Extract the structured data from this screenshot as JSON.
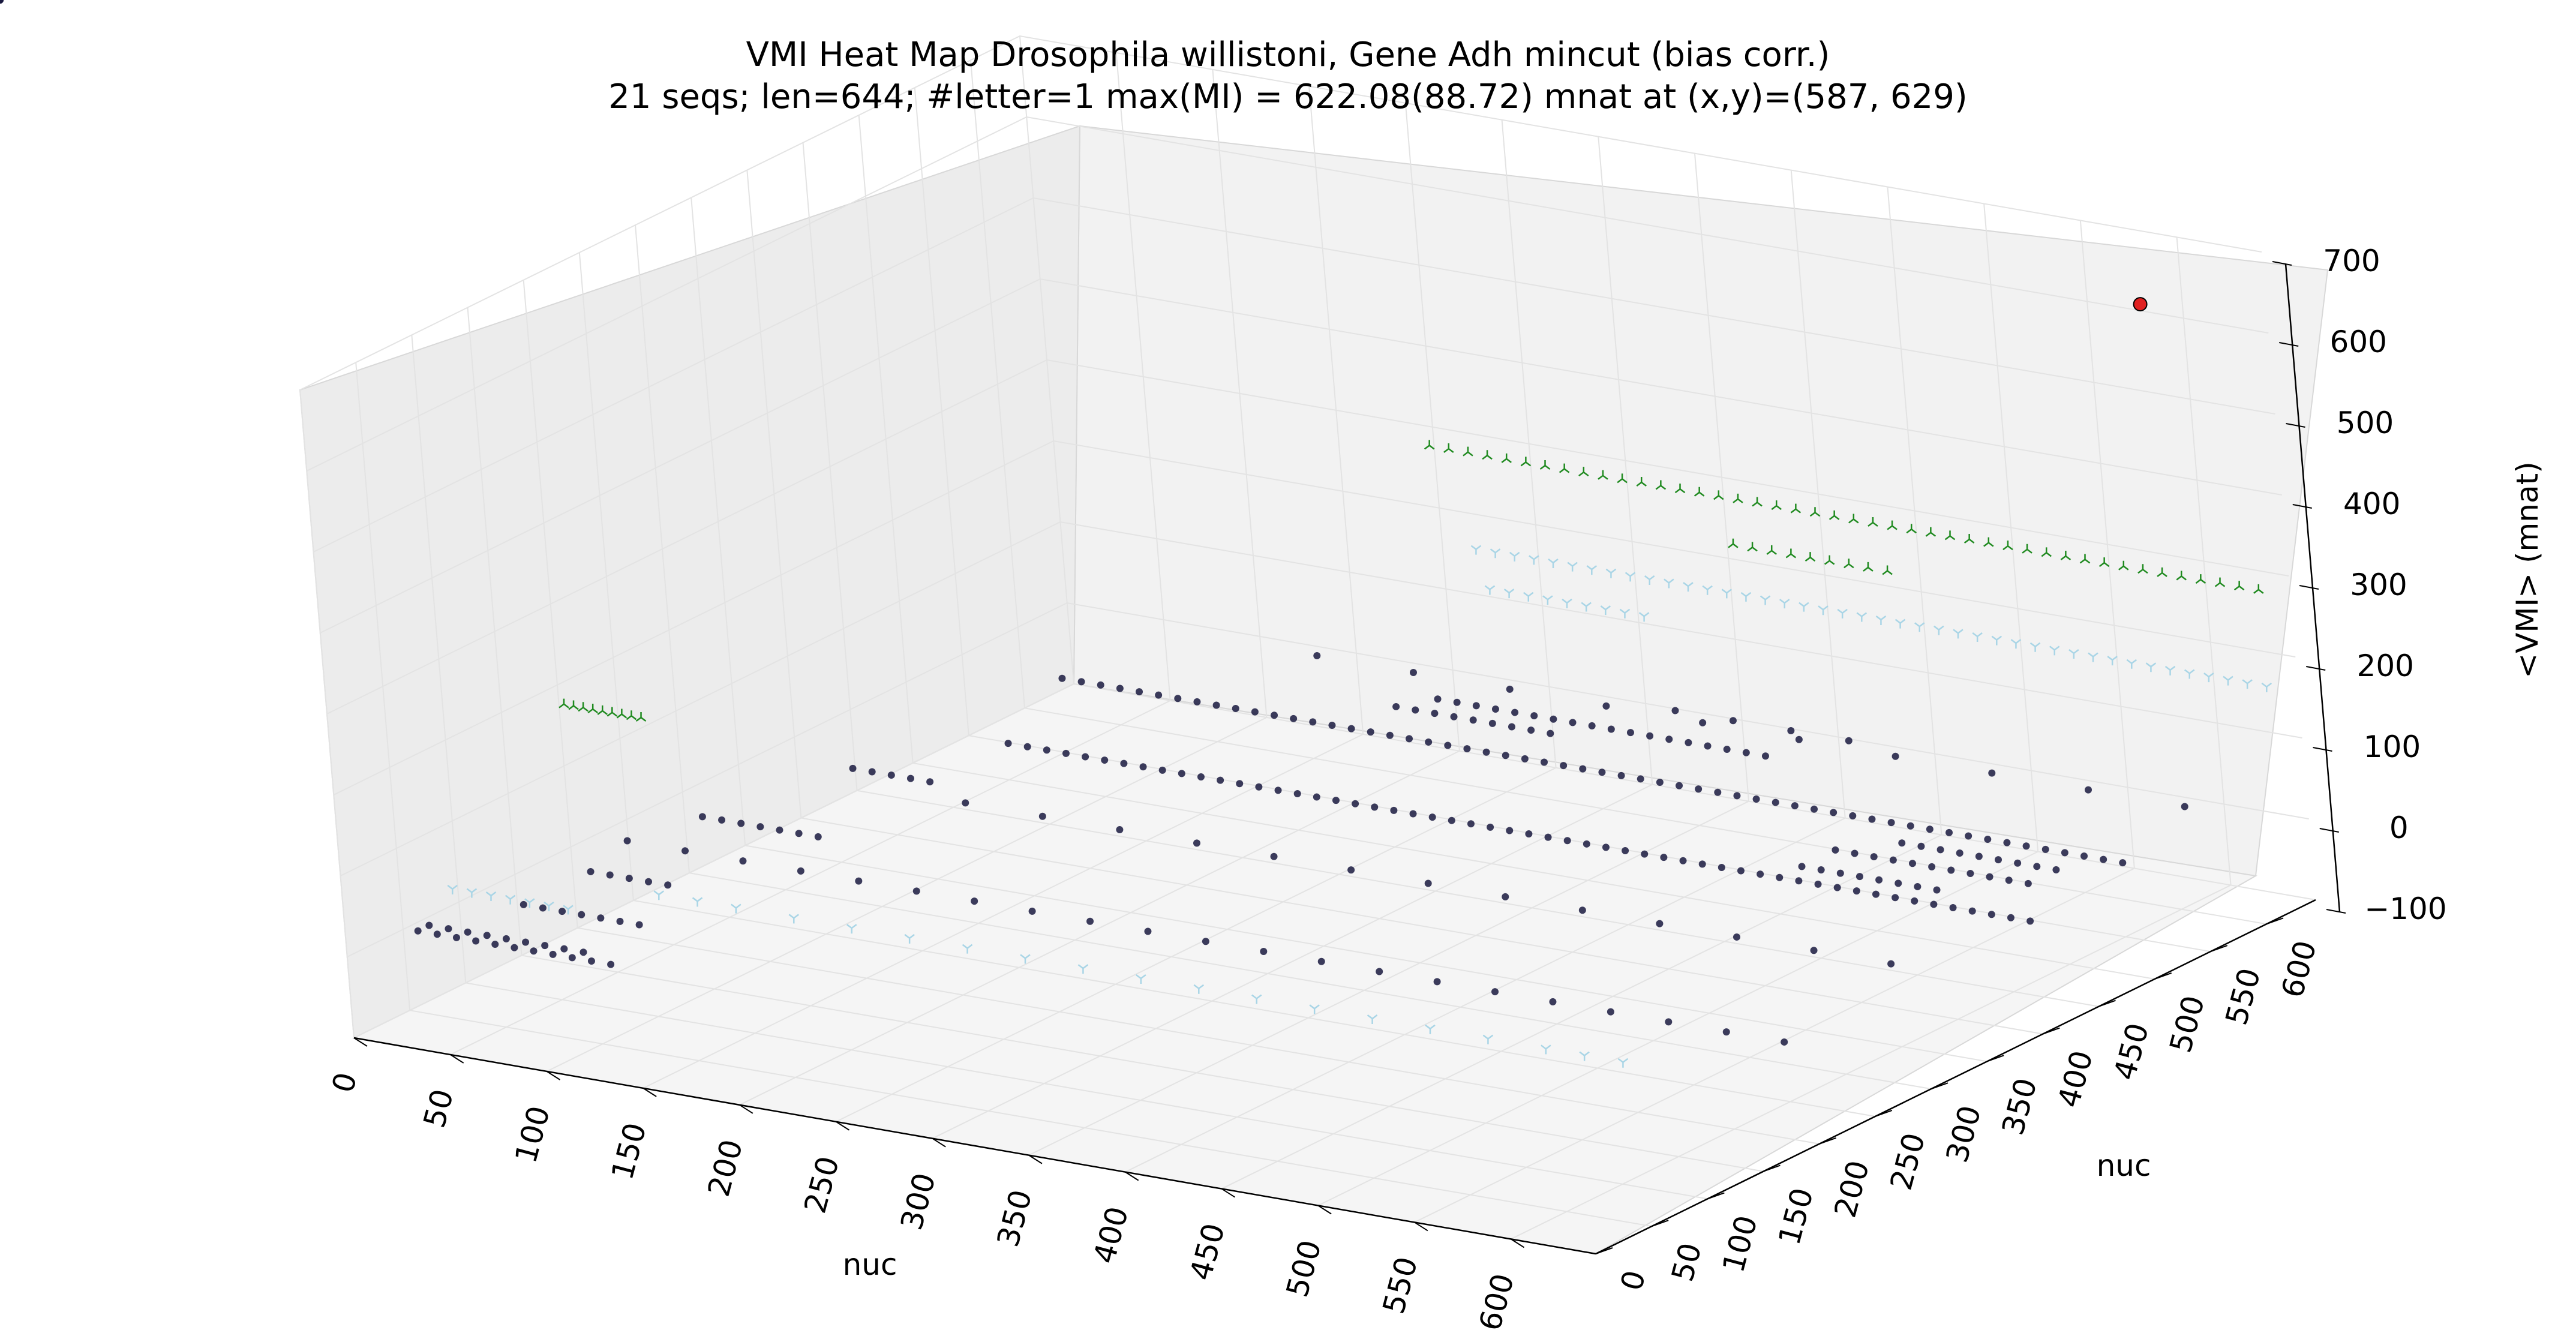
{
  "chart_data": {
    "type": "scatter",
    "projection": "3d",
    "title": "VMI Heat Map Drosophila willistoni, Gene Adh mincut (bias corr.)",
    "subtitle": "21 seqs; len=644; #letter=1 max(MI) = 622.08(88.72) mnat at (x,y)=(587, 629)",
    "xlabel": "nuc",
    "ylabel": "nuc",
    "zlabel": "<VMI> (mnat)",
    "xlim": [
      0,
      644
    ],
    "ylim": [
      0,
      644
    ],
    "zlim": [
      -100,
      700
    ],
    "x_ticks": [
      "0",
      "50",
      "100",
      "150",
      "200",
      "250",
      "300",
      "350",
      "400",
      "450",
      "500",
      "550",
      "600"
    ],
    "y_ticks": [
      "0",
      "50",
      "100",
      "150",
      "200",
      "250",
      "300",
      "350",
      "400",
      "450",
      "500",
      "550",
      "600"
    ],
    "z_ticks": [
      "−100",
      "0",
      "100",
      "200",
      "300",
      "400",
      "500",
      "600",
      "700"
    ],
    "grid": true,
    "colors": {
      "pane_back": "#f2f2f2",
      "pane_side": "#ececec",
      "pane_floor": "#f5f5f5",
      "grid": "#e3e3e3",
      "dots": "#1a1a40",
      "light": "#a9d5e6",
      "green": "#1f8a1f",
      "max_point": "#e02020"
    },
    "series": [
      {
        "marker": "dot",
        "color": "#1a1a40",
        "x": [
          20,
          30,
          40,
          50,
          60,
          70,
          80,
          90,
          100,
          110,
          120,
          20,
          30,
          40,
          50,
          60,
          70,
          80,
          90,
          100,
          40,
          50,
          60,
          70,
          80,
          90,
          100,
          40,
          50,
          60,
          70,
          80,
          40,
          50,
          60,
          70,
          80,
          90,
          100,
          60,
          70,
          80,
          90,
          100,
          100,
          110,
          120,
          130,
          140,
          150,
          160,
          170,
          180,
          190,
          200,
          210,
          220,
          230,
          240,
          250,
          260,
          270,
          280,
          290,
          300,
          310,
          320,
          330,
          340,
          350,
          360,
          370,
          380,
          390,
          400,
          410,
          420,
          430,
          440,
          450,
          460,
          470,
          480,
          490,
          500,
          510,
          520,
          530,
          540,
          550,
          560,
          570,
          580,
          590,
          600,
          610,
          620,
          630,
          70,
          80,
          90,
          100,
          110,
          120,
          130,
          140,
          150,
          160,
          170,
          180,
          190,
          200,
          210,
          220,
          230,
          240,
          250,
          260,
          270,
          280,
          290,
          300,
          310,
          320,
          330,
          340,
          350,
          360,
          370,
          380,
          390,
          400,
          410,
          420,
          430,
          440,
          450,
          460,
          470,
          480,
          490,
          500,
          510,
          520,
          530,
          540,
          550,
          560,
          570,
          580,
          590,
          600,
          610,
          620,
          220,
          230,
          240,
          250,
          260,
          270,
          280,
          290,
          300,
          230,
          240,
          250,
          260,
          270,
          280,
          290,
          300,
          310,
          320,
          330,
          340,
          350,
          360,
          370,
          380,
          390,
          400,
          500,
          510,
          520,
          530,
          540,
          550,
          560,
          570,
          500,
          510,
          520,
          530,
          540,
          550,
          560,
          570,
          580,
          590,
          600,
          520,
          530,
          540,
          550,
          560,
          570,
          580,
          590,
          600,
          30,
          60,
          90,
          120,
          150,
          180,
          210,
          240,
          270,
          300,
          330,
          360,
          390,
          420,
          450,
          480,
          510,
          540,
          570,
          600,
          630,
          130,
          170,
          210,
          250,
          290,
          330,
          370,
          410,
          450,
          490,
          530,
          570,
          610,
          150,
          200,
          250,
          300,
          350,
          400,
          450,
          500,
          550,
          600,
          330,
          360,
          390,
          420,
          450,
          480,
          510,
          540
        ],
        "y": [
          30,
          30,
          30,
          30,
          30,
          30,
          30,
          30,
          30,
          30,
          30,
          40,
          40,
          40,
          40,
          40,
          40,
          40,
          40,
          40,
          90,
          90,
          90,
          90,
          90,
          90,
          90,
          150,
          150,
          150,
          150,
          150,
          250,
          250,
          250,
          250,
          250,
          250,
          250,
          350,
          350,
          350,
          350,
          350,
          420,
          420,
          420,
          420,
          420,
          420,
          420,
          420,
          420,
          420,
          420,
          420,
          420,
          420,
          420,
          420,
          420,
          420,
          420,
          420,
          420,
          420,
          420,
          420,
          420,
          420,
          420,
          420,
          420,
          420,
          420,
          420,
          420,
          420,
          420,
          420,
          420,
          420,
          420,
          420,
          420,
          420,
          420,
          420,
          420,
          420,
          420,
          420,
          420,
          420,
          420,
          420,
          420,
          420,
          520,
          520,
          520,
          520,
          520,
          520,
          520,
          520,
          520,
          520,
          520,
          520,
          520,
          520,
          520,
          520,
          520,
          520,
          520,
          520,
          520,
          520,
          520,
          520,
          520,
          520,
          520,
          520,
          520,
          520,
          520,
          520,
          520,
          520,
          520,
          520,
          520,
          520,
          520,
          520,
          520,
          520,
          520,
          520,
          520,
          520,
          520,
          520,
          520,
          520,
          520,
          520,
          520,
          520,
          520,
          520,
          560,
          560,
          560,
          560,
          560,
          560,
          560,
          560,
          560,
          580,
          580,
          580,
          580,
          580,
          580,
          580,
          580,
          580,
          580,
          580,
          580,
          580,
          580,
          580,
          580,
          580,
          580,
          440,
          440,
          440,
          440,
          440,
          440,
          440,
          440,
          470,
          470,
          470,
          470,
          470,
          470,
          470,
          470,
          470,
          470,
          470,
          495,
          495,
          495,
          495,
          495,
          495,
          495,
          495,
          495,
          200,
          200,
          200,
          200,
          200,
          200,
          200,
          200,
          200,
          200,
          200,
          200,
          200,
          200,
          200,
          200,
          200,
          200,
          200,
          200,
          200,
          330,
          330,
          330,
          330,
          330,
          330,
          330,
          330,
          330,
          330,
          330,
          330,
          330,
          610,
          610,
          610,
          610,
          610,
          610,
          610,
          610,
          610,
          610,
          620,
          620,
          620,
          620,
          620,
          620,
          620,
          620
        ],
        "z": [
          20,
          20,
          20,
          20,
          20,
          20,
          20,
          20,
          20,
          20,
          20,
          20,
          20,
          20,
          20,
          20,
          20,
          20,
          20,
          20,
          20,
          20,
          20,
          20,
          20,
          20,
          20,
          20,
          20,
          20,
          20,
          20,
          20,
          20,
          20,
          20,
          20,
          20,
          20,
          20,
          20,
          20,
          20,
          20,
          20,
          20,
          20,
          20,
          20,
          20,
          20,
          20,
          20,
          20,
          20,
          20,
          20,
          20,
          20,
          20,
          20,
          20,
          20,
          20,
          20,
          20,
          20,
          20,
          20,
          20,
          20,
          20,
          20,
          20,
          20,
          20,
          20,
          20,
          20,
          20,
          20,
          20,
          20,
          20,
          20,
          20,
          20,
          20,
          20,
          20,
          20,
          20,
          20,
          20,
          20,
          20,
          20,
          20,
          20,
          20,
          20,
          20,
          20,
          20,
          20,
          20,
          20,
          20,
          20,
          20,
          20,
          20,
          20,
          20,
          20,
          20,
          20,
          20,
          20,
          20,
          20,
          20,
          20,
          20,
          20,
          20,
          20,
          20,
          20,
          20,
          20,
          20,
          20,
          20,
          20,
          20,
          20,
          20,
          20,
          20,
          20,
          20,
          20,
          20,
          20,
          20,
          20,
          20,
          20,
          20,
          20,
          20,
          20,
          20,
          20,
          20,
          20,
          20,
          20,
          20,
          20,
          20,
          20,
          20,
          20,
          20,
          20,
          20,
          20,
          20,
          20,
          20,
          20,
          20,
          20,
          20,
          20,
          20,
          20,
          20,
          20,
          20,
          20,
          20,
          20,
          20,
          20,
          20,
          20,
          20,
          20,
          20,
          20,
          20,
          20,
          20,
          20,
          20,
          20,
          20,
          20,
          20,
          20,
          20,
          20,
          20,
          20,
          20,
          20,
          20,
          20,
          20,
          20,
          20,
          20,
          20,
          20,
          20,
          20,
          20,
          20,
          20,
          20,
          20,
          20,
          20,
          20,
          20,
          20,
          20,
          20,
          20,
          20,
          20,
          20,
          20,
          20,
          20,
          20,
          20,
          20,
          20,
          20,
          20,
          20,
          20,
          20,
          20,
          20,
          20,
          20,
          20,
          20,
          20,
          20,
          20,
          20
        ]
      },
      {
        "marker": "tri_down",
        "color": "#a9d5e6",
        "x": [
          40,
          50,
          60,
          70,
          80,
          90,
          100,
          130,
          150,
          170,
          200,
          230,
          260,
          290,
          320,
          350,
          380,
          410,
          440,
          470,
          500,
          530,
          560,
          590,
          610,
          630,
          250,
          260,
          270,
          280,
          290,
          300,
          310,
          320,
          330,
          220,
          230,
          240,
          250,
          260,
          270,
          280,
          290,
          300,
          310,
          320,
          330,
          340,
          350,
          360,
          370,
          380,
          390,
          400,
          410,
          420,
          430,
          440,
          450,
          460,
          470,
          480,
          490,
          500,
          510,
          520,
          530,
          540,
          550,
          560,
          570,
          580,
          590,
          600,
          610,
          620,
          630
        ],
        "y": [
          30,
          30,
          30,
          30,
          30,
          30,
          30,
          60,
          60,
          60,
          60,
          60,
          60,
          60,
          60,
          60,
          60,
          60,
          60,
          60,
          60,
          60,
          60,
          60,
          60,
          60,
          600,
          600,
          600,
          600,
          600,
          600,
          600,
          600,
          600,
          640,
          640,
          640,
          640,
          640,
          640,
          640,
          640,
          640,
          640,
          640,
          640,
          640,
          640,
          640,
          640,
          640,
          640,
          640,
          640,
          640,
          640,
          640,
          640,
          640,
          640,
          640,
          640,
          640,
          640,
          640,
          640,
          640,
          640,
          640,
          640,
          640,
          640,
          640,
          640,
          640,
          640
        ],
        "z": [
          80,
          80,
          80,
          80,
          80,
          80,
          80,
          90,
          90,
          90,
          90,
          90,
          90,
          90,
          90,
          90,
          90,
          90,
          90,
          90,
          90,
          90,
          90,
          90,
          90,
          90,
          150,
          150,
          150,
          150,
          150,
          150,
          150,
          150,
          150,
          160,
          160,
          160,
          160,
          160,
          160,
          160,
          160,
          160,
          160,
          160,
          160,
          160,
          160,
          160,
          160,
          160,
          160,
          160,
          160,
          160,
          160,
          160,
          160,
          160,
          160,
          160,
          160,
          160,
          160,
          160,
          160,
          160,
          160,
          160,
          160,
          160,
          160,
          160,
          160,
          160,
          160
        ]
      },
      {
        "marker": "tri_up",
        "color": "#1f8a1f",
        "x": [
          70,
          75,
          80,
          85,
          90,
          95,
          100,
          105,
          110,
          200,
          210,
          220,
          230,
          240,
          250,
          260,
          270,
          280,
          290,
          300,
          310,
          320,
          330,
          340,
          350,
          360,
          370,
          380,
          390,
          400,
          410,
          420,
          430,
          440,
          450,
          460,
          470,
          480,
          490,
          500,
          510,
          520,
          530,
          540,
          550,
          560,
          570,
          580,
          590,
          600,
          610,
          620,
          630,
          380,
          390,
          400,
          410,
          420,
          430,
          440,
          450,
          460
        ],
        "y": [
          90,
          90,
          90,
          90,
          90,
          90,
          90,
          90,
          90,
          640,
          640,
          640,
          640,
          640,
          640,
          640,
          640,
          640,
          640,
          640,
          640,
          640,
          640,
          640,
          640,
          640,
          640,
          640,
          640,
          640,
          640,
          640,
          640,
          640,
          640,
          640,
          640,
          640,
          640,
          640,
          640,
          640,
          640,
          640,
          640,
          640,
          640,
          640,
          640,
          640,
          640,
          640,
          640,
          600,
          600,
          600,
          600,
          600,
          600,
          600,
          600,
          600
        ],
        "z": [
          280,
          280,
          280,
          280,
          280,
          280,
          280,
          280,
          280,
          280,
          280,
          280,
          280,
          280,
          280,
          280,
          280,
          280,
          280,
          280,
          280,
          280,
          280,
          280,
          280,
          280,
          280,
          280,
          280,
          280,
          280,
          280,
          280,
          280,
          280,
          280,
          280,
          280,
          280,
          280,
          280,
          280,
          280,
          280,
          280,
          280,
          280,
          280,
          280,
          280,
          280,
          280,
          280,
          260,
          260,
          260,
          260,
          260,
          260,
          260,
          260,
          260
        ]
      },
      {
        "marker": "max_point",
        "color": "#e02020",
        "x": [
          587
        ],
        "y": [
          629
        ],
        "z": [
          622.08
        ]
      }
    ]
  }
}
